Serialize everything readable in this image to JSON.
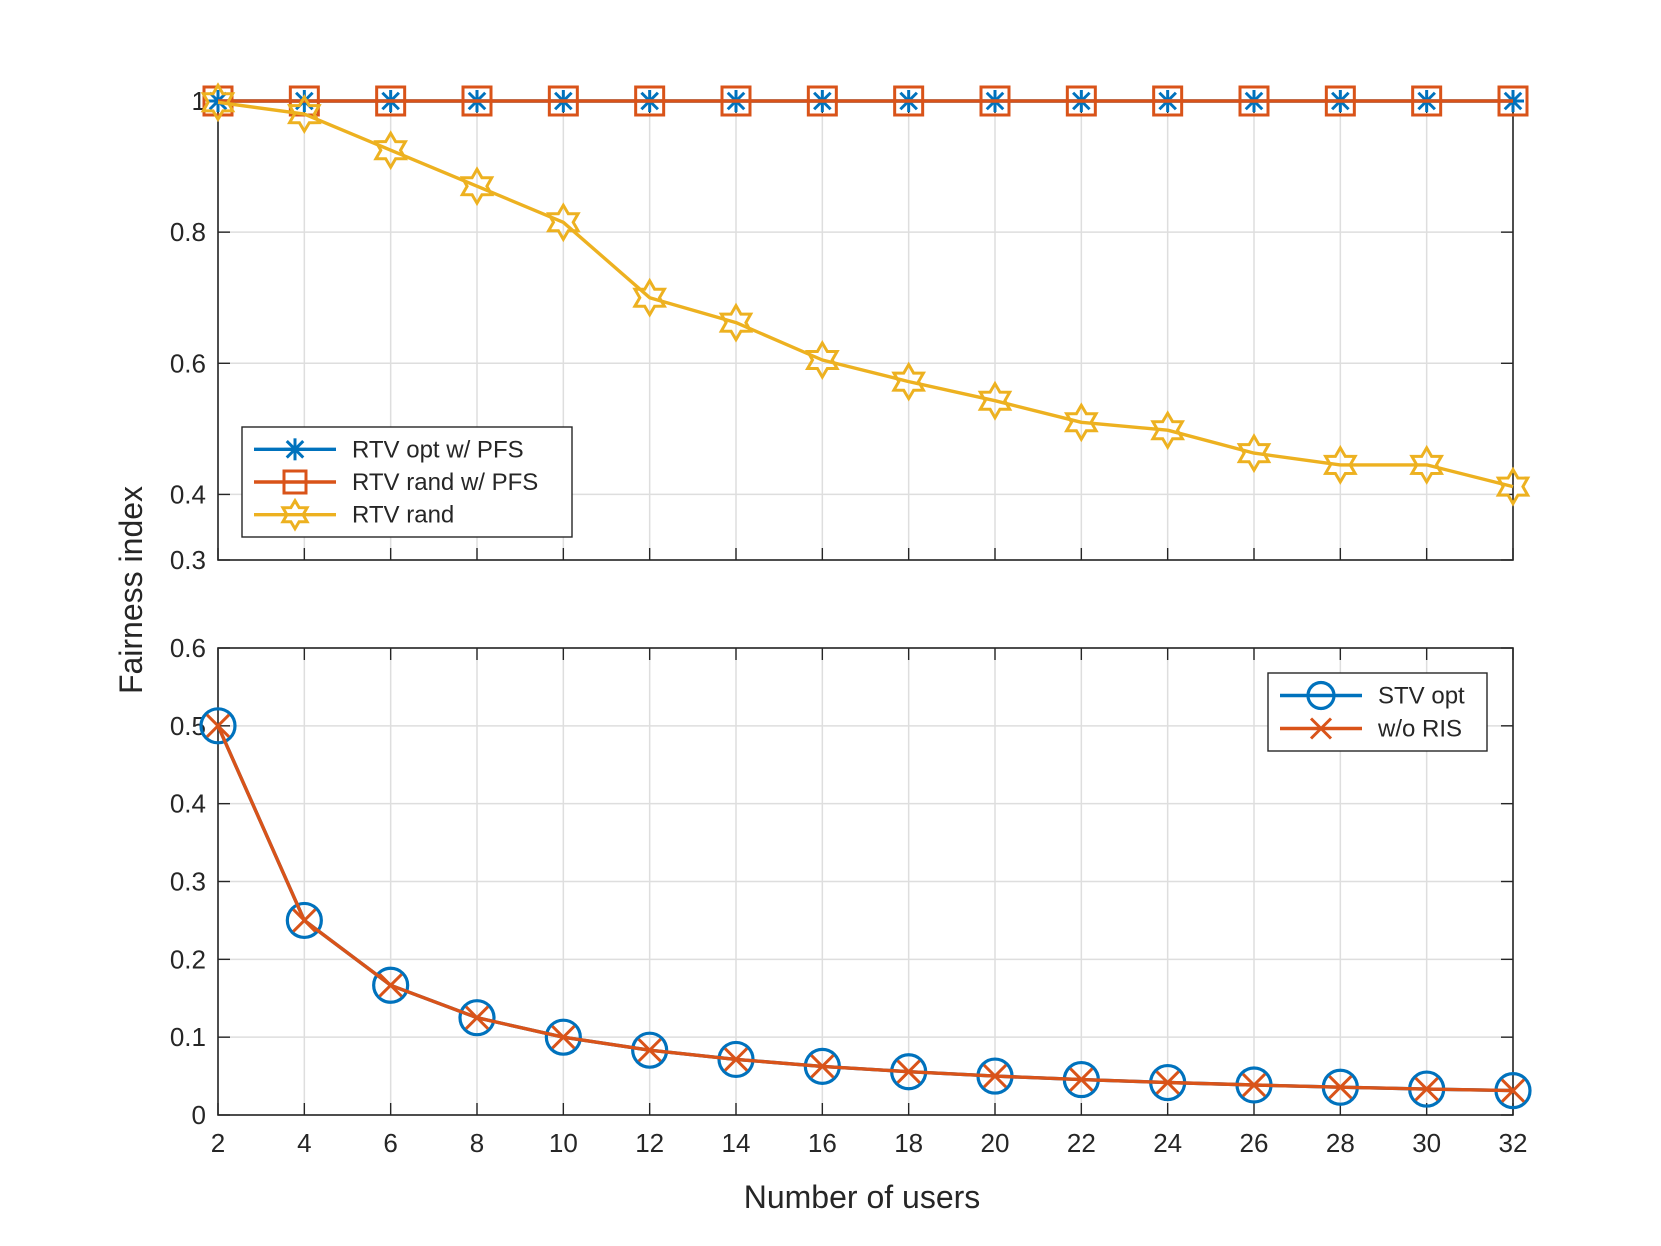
{
  "chart_data": [
    {
      "type": "line",
      "x": [
        2,
        4,
        6,
        8,
        10,
        12,
        14,
        16,
        18,
        20,
        22,
        24,
        26,
        28,
        30,
        32
      ],
      "xlim": [
        2,
        32
      ],
      "ylim": [
        0.3,
        1
      ],
      "yticks": [
        0.3,
        0.4,
        0.6,
        0.8,
        1
      ],
      "ytick_labels": [
        "0.3",
        "0.4",
        "0.6",
        "0.8",
        "1"
      ],
      "grid": true,
      "legend_location": "middle-left",
      "series": [
        {
          "name": "RTV opt w/ PFS",
          "color": "#0072BD",
          "marker": "asterisk",
          "values": [
            1,
            1,
            1,
            1,
            1,
            1,
            1,
            1,
            1,
            1,
            1,
            1,
            1,
            1,
            1,
            1
          ]
        },
        {
          "name": "RTV rand w/ PFS",
          "color": "#D95319",
          "marker": "square",
          "values": [
            1,
            1,
            1,
            1,
            1,
            1,
            1,
            1,
            1,
            1,
            1,
            1,
            1,
            1,
            1,
            1
          ]
        },
        {
          "name": "RTV rand",
          "color": "#EDB120",
          "marker": "hexagram",
          "values": [
            0.998,
            0.98,
            0.925,
            0.87,
            0.815,
            0.7,
            0.662,
            0.605,
            0.572,
            0.543,
            0.51,
            0.498,
            0.463,
            0.445,
            0.445,
            0.412
          ]
        }
      ]
    },
    {
      "type": "line",
      "x": [
        2,
        4,
        6,
        8,
        10,
        12,
        14,
        16,
        18,
        20,
        22,
        24,
        26,
        28,
        30,
        32
      ],
      "xlim": [
        2,
        32
      ],
      "ylim": [
        0,
        0.6
      ],
      "yticks": [
        0,
        0.1,
        0.2,
        0.3,
        0.4,
        0.5,
        0.6
      ],
      "ytick_labels": [
        "0",
        "0.1",
        "0.2",
        "0.3",
        "0.4",
        "0.5",
        "0.6"
      ],
      "xtick_labels": [
        "2",
        "4",
        "6",
        "8",
        "10",
        "12",
        "14",
        "16",
        "18",
        "20",
        "22",
        "24",
        "26",
        "28",
        "30",
        "32"
      ],
      "grid": true,
      "legend_location": "top-right",
      "series": [
        {
          "name": "STV opt",
          "color": "#0072BD",
          "marker": "circle",
          "values": [
            0.5,
            0.25,
            0.1667,
            0.125,
            0.1,
            0.0833,
            0.0714,
            0.0625,
            0.0556,
            0.05,
            0.0455,
            0.0417,
            0.0385,
            0.0357,
            0.0333,
            0.0313
          ]
        },
        {
          "name": "w/o RIS",
          "color": "#D95319",
          "marker": "x",
          "values": [
            0.5,
            0.25,
            0.1667,
            0.125,
            0.1,
            0.0833,
            0.0714,
            0.0625,
            0.0556,
            0.05,
            0.0455,
            0.0417,
            0.0385,
            0.0357,
            0.0333,
            0.0313
          ]
        }
      ]
    }
  ],
  "labels": {
    "ylabel": "Fairness index",
    "xlabel": "Number of users"
  }
}
